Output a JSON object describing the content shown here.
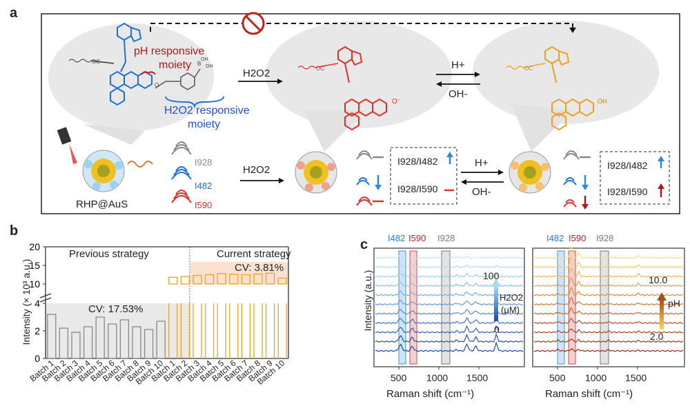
{
  "panel_a": {
    "letter": "a",
    "ph_moiety_line1": "pH responsive",
    "ph_moiety_line2": "moiety",
    "h2o2_moiety_line1": "H2O2 responsive",
    "h2o2_moiety_line2": "moiety",
    "arrow1_label": "H2O2",
    "h_plus": "H+",
    "oh_minus": "OH-",
    "probe_name": "RHP@AuS",
    "peak_labels": [
      "I928",
      "I482",
      "I590"
    ],
    "ratio1": "I928/I482",
    "ratio2": "I928/I590",
    "colors": {
      "blue": "#1e6fd9",
      "red": "#e0302a",
      "orange": "#f0a020",
      "dark_red": "#b01818"
    }
  },
  "panel_b": {
    "letter": "b",
    "ylabel": "Intensity (× 10³ a.u.)",
    "previous_label": "Previous strategy",
    "current_label": "Current strategy",
    "cv_previous": "CV: 17.53%",
    "cv_current": "CV: 3.81%",
    "upper_ticks": [
      "20",
      "15",
      "10"
    ],
    "lower_ticks": [
      "4",
      "2",
      "0"
    ]
  },
  "chart_data": {
    "type": "bar",
    "categories": [
      "Batch 1",
      "Batch 2",
      "Batch 3",
      "Batch 4",
      "Batch 5",
      "Batch 6",
      "Batch 7",
      "Batch 8",
      "Batch 9",
      "Batch 10",
      "Batch 1",
      "Batch 2",
      "Batch 3",
      "Batch 4",
      "Batch 5",
      "Batch 6",
      "Batch 7",
      "Batch 8",
      "Batch 9",
      "Batch 10"
    ],
    "series": [
      {
        "values": [
          3.2,
          2.2,
          1.9,
          2.3,
          3.0,
          2.5,
          2.8,
          2.3,
          2.1,
          2.7,
          null,
          null,
          null,
          null,
          null,
          null,
          null,
          null,
          null,
          null
        ]
      },
      {
        "values": [
          null,
          null,
          null,
          null,
          null,
          null,
          null,
          null,
          null,
          null,
          11.8,
          12.0,
          12.3,
          12.5,
          12.8,
          12.6,
          12.5,
          12.7,
          12.9,
          11.6
        ]
      }
    ],
    "ylim": [
      0,
      20
    ],
    "broken_axis": [
      4,
      10
    ]
  },
  "panel_c": {
    "letter": "c",
    "xlabel": "Raman shift (cm⁻¹)",
    "ylabel": "Intensity (a.u.)",
    "peaks": [
      "I482",
      "I590",
      "I928"
    ],
    "xticks": [
      "500",
      "1000",
      "1500"
    ],
    "left_top": "100",
    "left_bottom": "0",
    "left_unit": "(μM)",
    "left_species": "H2O2",
    "right_top": "10.0",
    "right_bottom": "2.0",
    "right_species": "pH"
  }
}
